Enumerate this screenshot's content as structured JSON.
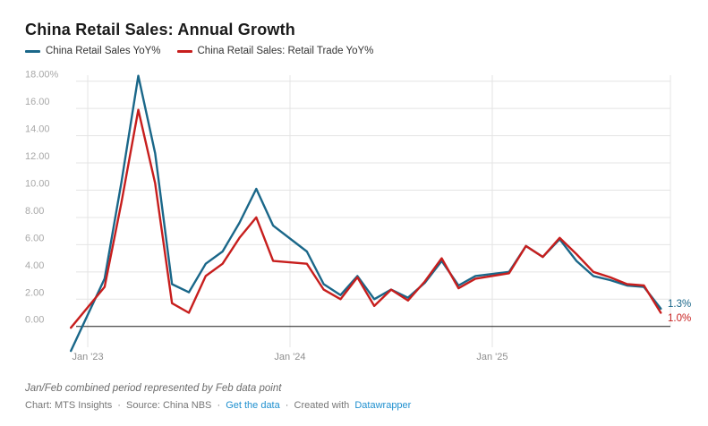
{
  "title": "China Retail Sales: Annual Growth",
  "legend": {
    "position": "top-left",
    "items": [
      {
        "label": "China Retail Sales YoY%",
        "color": "#1a6789"
      },
      {
        "label": "China Retail Sales: Retail Trade YoY%",
        "color": "#c71e1d"
      }
    ]
  },
  "chart_data": {
    "type": "line",
    "title": "China Retail Sales: Annual Growth",
    "grid": "on",
    "legend_position": "top-left",
    "x_tick_labels": [
      "Jan '23",
      "Jan '24",
      "Jan '25"
    ],
    "y_ticks": [
      18,
      16,
      14,
      12,
      10,
      8,
      6,
      4,
      2,
      0
    ],
    "y_tick_labels": [
      "18.00%",
      "16.00",
      "14.00",
      "12.00",
      "10.00",
      "8.00",
      "6.00",
      "4.00",
      "2.00",
      "0.00"
    ],
    "ylim": [
      -2.5,
      18.6
    ],
    "x": [
      "Dec '22",
      "Feb '23",
      "Mar '23",
      "Apr '23",
      "May '23",
      "Jun '23",
      "Jul '23",
      "Aug '23",
      "Sep '23",
      "Oct '23",
      "Nov '23",
      "Dec '23",
      "Feb '24",
      "Mar '24",
      "Apr '24",
      "May '24",
      "Jun '24",
      "Jul '24",
      "Aug '24",
      "Sep '24",
      "Oct '24",
      "Nov '24",
      "Dec '24",
      "Feb '25",
      "Mar '25",
      "Apr '25",
      "May '25",
      "Jun '25",
      "Jul '25",
      "Aug '25",
      "Sep '25",
      "Oct '25",
      "Nov '25"
    ],
    "month_offsets": [
      0,
      2,
      3,
      4,
      5,
      6,
      7,
      8,
      9,
      10,
      11,
      12,
      14,
      15,
      16,
      17,
      18,
      19,
      20,
      21,
      22,
      23,
      24,
      26,
      27,
      28,
      29,
      30,
      31,
      32,
      33,
      34,
      35
    ],
    "note": "Jan/Feb combined period represented by Feb data point",
    "series": [
      {
        "name": "China Retail Sales YoY%",
        "color": "#1a6789",
        "end_label": "1.3%",
        "values": [
          -1.8,
          3.5,
          10.6,
          18.4,
          12.7,
          3.1,
          2.5,
          4.6,
          5.5,
          7.6,
          10.1,
          7.4,
          5.5,
          3.1,
          2.3,
          3.7,
          2.0,
          2.7,
          2.1,
          3.2,
          4.8,
          3.0,
          3.7,
          4.0,
          5.9,
          5.1,
          6.4,
          4.8,
          3.7,
          3.4,
          3.0,
          2.9,
          1.3
        ]
      },
      {
        "name": "China Retail Sales: Retail Trade YoY%",
        "color": "#c71e1d",
        "end_label": "1.0%",
        "values": [
          -0.1,
          2.9,
          9.1,
          15.9,
          10.5,
          1.7,
          1.0,
          3.7,
          4.6,
          6.5,
          8.0,
          4.8,
          4.6,
          2.7,
          2.0,
          3.6,
          1.5,
          2.7,
          1.9,
          3.3,
          5.0,
          2.8,
          3.5,
          3.9,
          5.9,
          5.1,
          6.5,
          5.3,
          4.0,
          3.6,
          3.1,
          3.0,
          1.0
        ]
      }
    ]
  },
  "footer": {
    "note": "Jan/Feb combined period represented by Feb data point",
    "chart_credit": "Chart: MTS Insights",
    "source_label": "Source: China NBS",
    "get_data_link": "Get the data",
    "created_with": "Created with",
    "datawrapper_link": "Datawrapper",
    "separator": "·"
  }
}
